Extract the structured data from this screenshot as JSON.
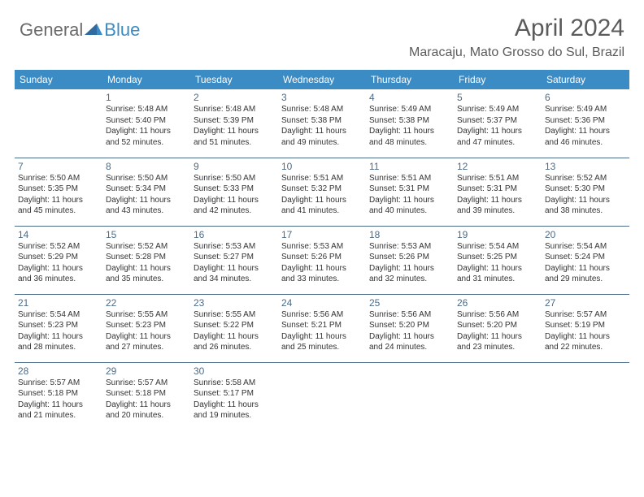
{
  "brand": {
    "part1": "General",
    "part2": "Blue"
  },
  "title": "April 2024",
  "location": "Maracaju, Mato Grosso do Sul, Brazil",
  "colors": {
    "header_bg": "#3b8bc4",
    "header_text": "#ffffff",
    "daynum_color": "#4a6c8a",
    "border_color": "#4a6c8a",
    "title_color": "#5b5b5b",
    "body_text": "#333333"
  },
  "weekdays": [
    "Sunday",
    "Monday",
    "Tuesday",
    "Wednesday",
    "Thursday",
    "Friday",
    "Saturday"
  ],
  "weeks": [
    [
      null,
      {
        "n": "1",
        "sr": "Sunrise: 5:48 AM",
        "ss": "Sunset: 5:40 PM",
        "d1": "Daylight: 11 hours",
        "d2": "and 52 minutes."
      },
      {
        "n": "2",
        "sr": "Sunrise: 5:48 AM",
        "ss": "Sunset: 5:39 PM",
        "d1": "Daylight: 11 hours",
        "d2": "and 51 minutes."
      },
      {
        "n": "3",
        "sr": "Sunrise: 5:48 AM",
        "ss": "Sunset: 5:38 PM",
        "d1": "Daylight: 11 hours",
        "d2": "and 49 minutes."
      },
      {
        "n": "4",
        "sr": "Sunrise: 5:49 AM",
        "ss": "Sunset: 5:38 PM",
        "d1": "Daylight: 11 hours",
        "d2": "and 48 minutes."
      },
      {
        "n": "5",
        "sr": "Sunrise: 5:49 AM",
        "ss": "Sunset: 5:37 PM",
        "d1": "Daylight: 11 hours",
        "d2": "and 47 minutes."
      },
      {
        "n": "6",
        "sr": "Sunrise: 5:49 AM",
        "ss": "Sunset: 5:36 PM",
        "d1": "Daylight: 11 hours",
        "d2": "and 46 minutes."
      }
    ],
    [
      {
        "n": "7",
        "sr": "Sunrise: 5:50 AM",
        "ss": "Sunset: 5:35 PM",
        "d1": "Daylight: 11 hours",
        "d2": "and 45 minutes."
      },
      {
        "n": "8",
        "sr": "Sunrise: 5:50 AM",
        "ss": "Sunset: 5:34 PM",
        "d1": "Daylight: 11 hours",
        "d2": "and 43 minutes."
      },
      {
        "n": "9",
        "sr": "Sunrise: 5:50 AM",
        "ss": "Sunset: 5:33 PM",
        "d1": "Daylight: 11 hours",
        "d2": "and 42 minutes."
      },
      {
        "n": "10",
        "sr": "Sunrise: 5:51 AM",
        "ss": "Sunset: 5:32 PM",
        "d1": "Daylight: 11 hours",
        "d2": "and 41 minutes."
      },
      {
        "n": "11",
        "sr": "Sunrise: 5:51 AM",
        "ss": "Sunset: 5:31 PM",
        "d1": "Daylight: 11 hours",
        "d2": "and 40 minutes."
      },
      {
        "n": "12",
        "sr": "Sunrise: 5:51 AM",
        "ss": "Sunset: 5:31 PM",
        "d1": "Daylight: 11 hours",
        "d2": "and 39 minutes."
      },
      {
        "n": "13",
        "sr": "Sunrise: 5:52 AM",
        "ss": "Sunset: 5:30 PM",
        "d1": "Daylight: 11 hours",
        "d2": "and 38 minutes."
      }
    ],
    [
      {
        "n": "14",
        "sr": "Sunrise: 5:52 AM",
        "ss": "Sunset: 5:29 PM",
        "d1": "Daylight: 11 hours",
        "d2": "and 36 minutes."
      },
      {
        "n": "15",
        "sr": "Sunrise: 5:52 AM",
        "ss": "Sunset: 5:28 PM",
        "d1": "Daylight: 11 hours",
        "d2": "and 35 minutes."
      },
      {
        "n": "16",
        "sr": "Sunrise: 5:53 AM",
        "ss": "Sunset: 5:27 PM",
        "d1": "Daylight: 11 hours",
        "d2": "and 34 minutes."
      },
      {
        "n": "17",
        "sr": "Sunrise: 5:53 AM",
        "ss": "Sunset: 5:26 PM",
        "d1": "Daylight: 11 hours",
        "d2": "and 33 minutes."
      },
      {
        "n": "18",
        "sr": "Sunrise: 5:53 AM",
        "ss": "Sunset: 5:26 PM",
        "d1": "Daylight: 11 hours",
        "d2": "and 32 minutes."
      },
      {
        "n": "19",
        "sr": "Sunrise: 5:54 AM",
        "ss": "Sunset: 5:25 PM",
        "d1": "Daylight: 11 hours",
        "d2": "and 31 minutes."
      },
      {
        "n": "20",
        "sr": "Sunrise: 5:54 AM",
        "ss": "Sunset: 5:24 PM",
        "d1": "Daylight: 11 hours",
        "d2": "and 29 minutes."
      }
    ],
    [
      {
        "n": "21",
        "sr": "Sunrise: 5:54 AM",
        "ss": "Sunset: 5:23 PM",
        "d1": "Daylight: 11 hours",
        "d2": "and 28 minutes."
      },
      {
        "n": "22",
        "sr": "Sunrise: 5:55 AM",
        "ss": "Sunset: 5:23 PM",
        "d1": "Daylight: 11 hours",
        "d2": "and 27 minutes."
      },
      {
        "n": "23",
        "sr": "Sunrise: 5:55 AM",
        "ss": "Sunset: 5:22 PM",
        "d1": "Daylight: 11 hours",
        "d2": "and 26 minutes."
      },
      {
        "n": "24",
        "sr": "Sunrise: 5:56 AM",
        "ss": "Sunset: 5:21 PM",
        "d1": "Daylight: 11 hours",
        "d2": "and 25 minutes."
      },
      {
        "n": "25",
        "sr": "Sunrise: 5:56 AM",
        "ss": "Sunset: 5:20 PM",
        "d1": "Daylight: 11 hours",
        "d2": "and 24 minutes."
      },
      {
        "n": "26",
        "sr": "Sunrise: 5:56 AM",
        "ss": "Sunset: 5:20 PM",
        "d1": "Daylight: 11 hours",
        "d2": "and 23 minutes."
      },
      {
        "n": "27",
        "sr": "Sunrise: 5:57 AM",
        "ss": "Sunset: 5:19 PM",
        "d1": "Daylight: 11 hours",
        "d2": "and 22 minutes."
      }
    ],
    [
      {
        "n": "28",
        "sr": "Sunrise: 5:57 AM",
        "ss": "Sunset: 5:18 PM",
        "d1": "Daylight: 11 hours",
        "d2": "and 21 minutes."
      },
      {
        "n": "29",
        "sr": "Sunrise: 5:57 AM",
        "ss": "Sunset: 5:18 PM",
        "d1": "Daylight: 11 hours",
        "d2": "and 20 minutes."
      },
      {
        "n": "30",
        "sr": "Sunrise: 5:58 AM",
        "ss": "Sunset: 5:17 PM",
        "d1": "Daylight: 11 hours",
        "d2": "and 19 minutes."
      },
      null,
      null,
      null,
      null
    ]
  ]
}
